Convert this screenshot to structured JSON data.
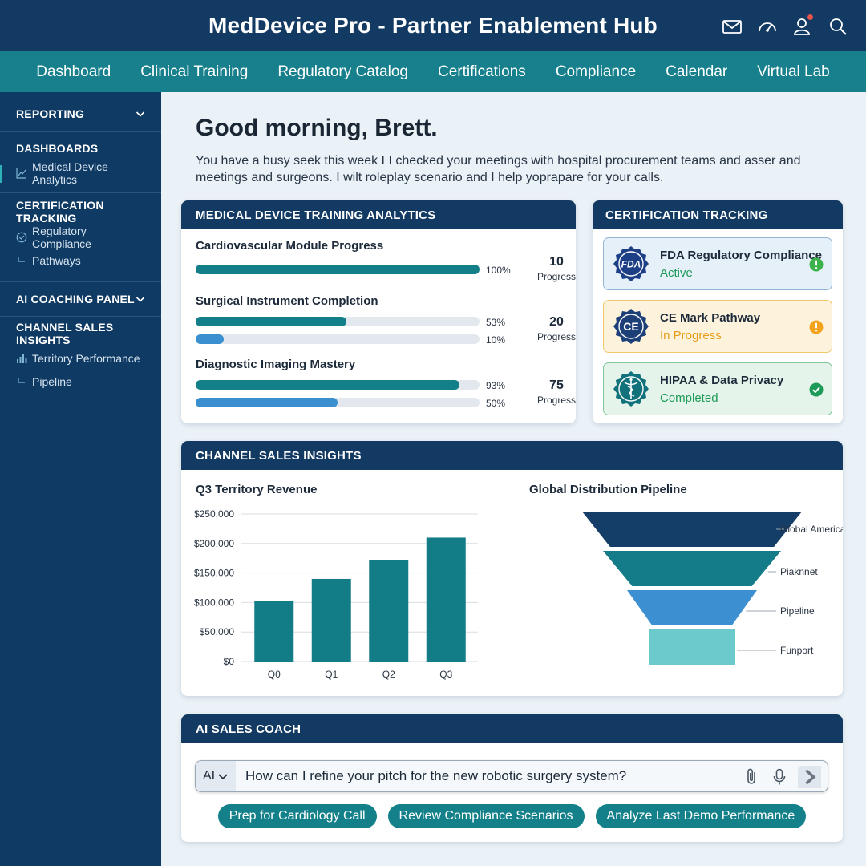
{
  "app": {
    "title": "MedDevice Pro - Partner Enablement Hub"
  },
  "header_icons": [
    "mail-icon",
    "speedometer-icon",
    "user-icon",
    "search-icon"
  ],
  "nav": [
    "Dashboard",
    "Clinical Training",
    "Regulatory Catalog",
    "Certifications",
    "Compliance",
    "Calendar",
    "Virtual Lab"
  ],
  "sidebar": {
    "reporting": "REPORTING",
    "dashboards": "DASHBOARDS",
    "medical_device_analytics": "Medical Device Analytics",
    "certification_tracking": "CERTIFICATION TRACKING",
    "regulatory_compliance": "Regulatory Compliance",
    "pathways": "Pathways",
    "ai_coaching_panel": "AI COACHING PANEL",
    "channel_sales_insights": "CHANNEL SALES INSIGHTS",
    "territory_performance": "Territory Performance",
    "pipeline": "Pipeline"
  },
  "greeting": {
    "title": "Good morning, Brett.",
    "text": "You have a busy seek this week I I checked your meetings with hospital procurement teams and asser and meetings and surgeons. I wilt roleplay scenario and I help yoprapare for your calls."
  },
  "training": {
    "title": "MEDICAL DEVICE TRAINING ANALYTICS",
    "modules": [
      {
        "title": "Cardiovascular Module Progress",
        "bars": [
          {
            "value": 100,
            "label": "100%",
            "color": "teal"
          }
        ],
        "stat_value": "10",
        "stat_label": "Progress"
      },
      {
        "title": "Surgical Instrument Completion",
        "bars": [
          {
            "value": 53,
            "label": "53%",
            "color": "teal"
          },
          {
            "value": 10,
            "label": "10%",
            "color": "blue"
          }
        ],
        "stat_value": "20",
        "stat_label": "Progress"
      },
      {
        "title": "Diagnostic Imaging Mastery",
        "bars": [
          {
            "value": 93,
            "label": "93%",
            "color": "teal"
          },
          {
            "value": 50,
            "label": "50%",
            "color": "blue"
          }
        ],
        "stat_value": "75",
        "stat_label": "Progress"
      }
    ]
  },
  "certification": {
    "title": "CERTIFICATION TRACKING",
    "items": [
      {
        "title": "FDA Regulatory Compliance",
        "status": "Active",
        "badge_text": "FDA",
        "status_color": "#1e9a58",
        "bg": "#e6f0f9",
        "border": "#93b6d6",
        "icon": "alert-icon-green"
      },
      {
        "title": "CE Mark Pathway",
        "status": "In Progress",
        "badge_text": "CE",
        "status_color": "#e49c16",
        "bg": "#fdf3dd",
        "border": "#efc86a",
        "icon": "alert-icon-orange"
      },
      {
        "title": "HIPAA & Data Privacy",
        "status": "Completed",
        "badge_text": "",
        "status_color": "#1e9a58",
        "bg": "#e4f4ea",
        "border": "#7fc79a",
        "icon": "check-icon"
      }
    ]
  },
  "channel": {
    "title": "CHANNEL SALES INSIGHTS"
  },
  "chart_data": [
    {
      "type": "bar",
      "title": "Q3 Territory Revenue",
      "categories": [
        "Q0",
        "Q1",
        "Q2",
        "Q3"
      ],
      "values": [
        103000,
        140000,
        172000,
        210000
      ],
      "yticks": [
        "$0",
        "$50,000",
        "$100,000",
        "$150,000",
        "$200,000",
        "$250,000"
      ],
      "ylim": [
        0,
        250000
      ],
      "grid": true,
      "color": "#127c87"
    },
    {
      "type": "funnel",
      "title": "Global Distribution Pipeline",
      "stages": [
        {
          "label": "Global America",
          "color": "#143d68"
        },
        {
          "label": "Piaknnet",
          "color": "#137c88"
        },
        {
          "label": "Pipeline",
          "color": "#3c8fd1"
        },
        {
          "label": "Funport",
          "color": "#6cc9cc"
        }
      ]
    }
  ],
  "ai_coach": {
    "title": "AI SALES COACH",
    "mode": "AI",
    "prompt": "How can I refine your pitch for the new robotic surgery system?",
    "chips": [
      "Prep for Cardiology Call",
      "Review Compliance Scenarios",
      "Analyze Last Demo Performance"
    ]
  }
}
